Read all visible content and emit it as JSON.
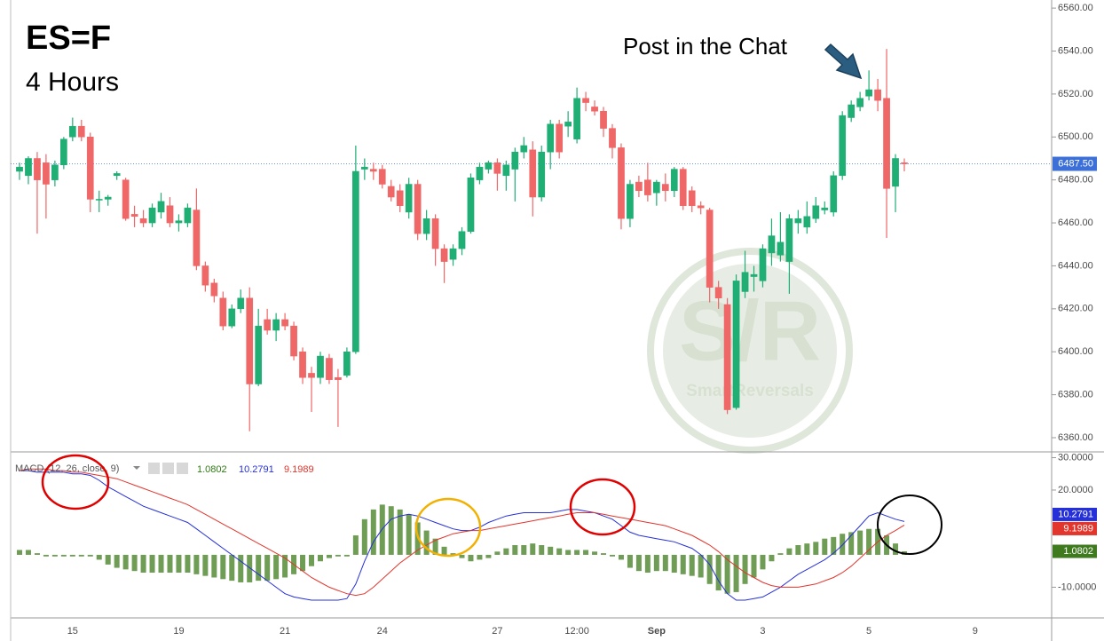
{
  "chart_data": {
    "type": "candlestick",
    "title": "ES=F",
    "subtitle": "4 Hours",
    "annotation": "Post in the Chat",
    "watermark": {
      "logo": "S/R",
      "text": "SmartReversals"
    },
    "categories": [
      null,
      null,
      null,
      null,
      null,
      null,
      "15",
      null,
      null,
      null,
      null,
      null,
      null,
      null,
      null,
      null,
      null,
      null,
      "19",
      null,
      null,
      null,
      null,
      null,
      null,
      null,
      null,
      null,
      null,
      null,
      "21",
      null,
      null,
      null,
      null,
      null,
      null,
      null,
      null,
      null,
      null,
      "24",
      null,
      null,
      null,
      null,
      null,
      null,
      null,
      null,
      null,
      null,
      null,
      null,
      "27",
      null,
      null,
      null,
      null,
      null,
      null,
      null,
      null,
      "12:00",
      null,
      null,
      null,
      null,
      null,
      null,
      null,
      null,
      "Sep",
      null,
      null,
      null,
      null,
      null,
      null,
      null,
      null,
      null,
      null,
      null,
      "3",
      null,
      null,
      null,
      null,
      null,
      null,
      null,
      null,
      null,
      null,
      null,
      "5",
      null,
      null,
      null,
      null,
      null,
      null,
      null,
      null,
      null,
      null,
      null,
      "9",
      null,
      null,
      null,
      null,
      null,
      null,
      null,
      null
    ],
    "open": [
      6484,
      6482,
      6490,
      6488,
      6480,
      6487,
      6500,
      6505,
      6500,
      6471,
      6471,
      6482,
      6480,
      6464,
      6462,
      6460,
      6465,
      6468,
      6460,
      6460,
      6466,
      6440,
      6432,
      6425,
      6412,
      6420,
      6425,
      6385,
      6415,
      6410,
      6415,
      6412,
      6400,
      6390,
      6388,
      6397,
      6388,
      6389,
      6400,
      6485,
      6485,
      6485,
      6477,
      6475,
      6465,
      6478,
      6455,
      6462,
      6448,
      6443,
      6448,
      6456,
      6480,
      6485,
      6488,
      6482,
      6485,
      6493,
      6494,
      6472,
      6493,
      6506,
      6505,
      6499,
      6518,
      6514,
      6512,
      6504,
      6495,
      6462,
      6479,
      6480,
      6474,
      6478,
      6475,
      6485,
      6475,
      6468,
      6466,
      6430,
      6422,
      6374,
      6428,
      6435,
      6433,
      6446,
      6445,
      6442,
      6460,
      6458,
      6462,
      6466,
      6465,
      6482,
      6509,
      6514,
      6519,
      6522,
      6518,
      6477,
      6488,
      null,
      null,
      null,
      null,
      null,
      null,
      null,
      null,
      null,
      null,
      null,
      null,
      null,
      null,
      null,
      null
    ],
    "high": [
      6488,
      6491,
      6493,
      6492,
      6489,
      6500,
      6509,
      6508,
      6502,
      6475,
      6473,
      6484,
      6481,
      6468,
      6466,
      6469,
      6474,
      6472,
      6464,
      6469,
      6476,
      6442,
      6434,
      6428,
      6422,
      6429,
      6430,
      6420,
      6420,
      6418,
      6418,
      6414,
      6402,
      6393,
      6400,
      6399,
      6392,
      6402,
      6496,
      6490,
      6488,
      6487,
      6480,
      6478,
      6481,
      6480,
      6466,
      6464,
      6450,
      6450,
      6458,
      6483,
      6488,
      6489,
      6490,
      6489,
      6495,
      6500,
      6498,
      6496,
      6508,
      6508,
      6512,
      6523,
      6521,
      6517,
      6514,
      6506,
      6497,
      6480,
      6482,
      6488,
      6480,
      6483,
      6486,
      6486,
      6477,
      6470,
      6467,
      6433,
      6425,
      6436,
      6447,
      6440,
      6450,
      6462,
      6465,
      6464,
      6466,
      6470,
      6472,
      6470,
      6484,
      6512,
      6517,
      6521,
      6531,
      6527,
      6541,
      6492,
      6490,
      null,
      null,
      null,
      null,
      null,
      null,
      null,
      null,
      null,
      null,
      null,
      null,
      null,
      null,
      null,
      null
    ],
    "low": [
      6480,
      6478,
      6455,
      6462,
      6477,
      6485,
      6498,
      6498,
      6465,
      6465,
      6468,
      6480,
      6461,
      6458,
      6458,
      6458,
      6462,
      6458,
      6456,
      6458,
      6438,
      6428,
      6423,
      6410,
      6411,
      6418,
      6363,
      6384,
      6408,
      6405,
      6410,
      6396,
      6385,
      6372,
      6385,
      6385,
      6365,
      6388,
      6399,
      6480,
      6480,
      6476,
      6470,
      6465,
      6462,
      6452,
      6452,
      6440,
      6432,
      6440,
      6445,
      6455,
      6478,
      6483,
      6475,
      6475,
      6470,
      6490,
      6463,
      6470,
      6485,
      6490,
      6500,
      6497,
      6512,
      6510,
      6500,
      6490,
      6457,
      6458,
      6472,
      6470,
      6468,
      6470,
      6472,
      6466,
      6465,
      6464,
      6423,
      6420,
      6371,
      6373,
      6425,
      6428,
      6430,
      6440,
      6442,
      6427,
      6455,
      6455,
      6460,
      6464,
      6463,
      6480,
      6507,
      6512,
      6517,
      6512,
      6453,
      6465,
      6484,
      null,
      null,
      null,
      null,
      null,
      null,
      null,
      null,
      null,
      null,
      null,
      null,
      null,
      null,
      null,
      null
    ],
    "close": [
      6486,
      6490,
      6480,
      6478,
      6487,
      6499,
      6505,
      6500,
      6471,
      6471,
      6472,
      6483,
      6462,
      6463,
      6460,
      6467,
      6470,
      6460,
      6461,
      6467,
      6440,
      6431,
      6426,
      6412,
      6420,
      6425,
      6385,
      6412,
      6410,
      6415,
      6412,
      6398,
      6388,
      6388,
      6398,
      6387,
      6387,
      6400,
      6484,
      6486,
      6484,
      6478,
      6472,
      6468,
      6478,
      6455,
      6462,
      6448,
      6442,
      6448,
      6456,
      6481,
      6486,
      6488,
      6483,
      6487,
      6493,
      6496,
      6472,
      6493,
      6506,
      6493,
      6507,
      6518,
      6516,
      6512,
      6504,
      6495,
      6462,
      6478,
      6475,
      6473,
      6479,
      6475,
      6485,
      6468,
      6468,
      6467,
      6430,
      6425,
      6373,
      6433,
      6437,
      6436,
      6448,
      6454,
      6451,
      6462,
      6462,
      6463,
      6468,
      6467,
      6482,
      6510,
      6515,
      6518,
      6522,
      6517,
      6476,
      6490,
      6487.5,
      null,
      null,
      null,
      null,
      null,
      null,
      null,
      null,
      null,
      null,
      null,
      null,
      null,
      null,
      null,
      null
    ],
    "up_color": "#1fae74",
    "down_color": "#ef6767",
    "last_price": {
      "value": 6487.5,
      "label": "6487.50",
      "color": "#3c70d8"
    },
    "ylim": [
      6353.8,
      6561.7
    ],
    "yticks": [
      {
        "value": 6360,
        "label": "6360.00"
      },
      {
        "value": 6380,
        "label": "6380.00"
      },
      {
        "value": 6400,
        "label": "6400.00"
      },
      {
        "value": 6420,
        "label": "6420.00"
      },
      {
        "value": 6440,
        "label": "6440.00"
      },
      {
        "value": 6460,
        "label": "6460.00"
      },
      {
        "value": 6480,
        "label": "6480.00"
      },
      {
        "value": 6500,
        "label": "6500.00"
      },
      {
        "value": 6520,
        "label": "6520.00"
      },
      {
        "value": 6540,
        "label": "6540.00"
      },
      {
        "value": 6560,
        "label": "6560.00"
      }
    ],
    "grid": false,
    "macd": {
      "title": "MACD (12, 26, close, 9)",
      "ylim": [
        -19.2,
        31.5
      ],
      "yticks": [
        {
          "value": -10,
          "label": "-10.0000"
        },
        {
          "value": 20,
          "label": "20.0000"
        },
        {
          "value": 30,
          "label": "30.0000"
        }
      ],
      "histogram": {
        "color": "#6f9d55",
        "values": [
          1.5,
          1.5,
          0.5,
          -0.5,
          -0.5,
          -0.5,
          -0.5,
          -0.5,
          -0.5,
          -1.5,
          -3,
          -4,
          -4.5,
          -5,
          -5.5,
          -5.5,
          -5.5,
          -5.5,
          -5.5,
          -5.5,
          -6,
          -6.5,
          -7,
          -7.5,
          -8,
          -8.5,
          -8.5,
          -8,
          -8,
          -7.5,
          -7,
          -6,
          -5,
          -3.5,
          -2,
          -1,
          -0.5,
          -0.5,
          6,
          11,
          14,
          15.5,
          15,
          14,
          12.5,
          10,
          7.5,
          5,
          2.5,
          0.5,
          -1,
          -2,
          -1.5,
          -1,
          1,
          2,
          3,
          3,
          3.5,
          3,
          2.5,
          2,
          1.5,
          1.5,
          1.5,
          1,
          0.5,
          -0.5,
          -1.5,
          -4,
          -5,
          -5.5,
          -5,
          -5,
          -5.5,
          -6,
          -6.5,
          -7,
          -9,
          -11,
          -12,
          -11.5,
          -9,
          -7,
          -4.5,
          -2,
          0.5,
          2,
          3,
          3.5,
          4,
          5,
          5.5,
          6.5,
          7,
          7.5,
          8,
          8,
          6,
          3.5,
          1.0802,
          null,
          null,
          null,
          null,
          null,
          null,
          null,
          null,
          null,
          null,
          null,
          null,
          null,
          null,
          null,
          null
        ]
      },
      "series": [
        {
          "color": "#2630d8",
          "values": [
            26,
            26,
            25.5,
            25.5,
            25.5,
            25.5,
            25,
            25,
            24.5,
            23,
            21,
            19.5,
            18,
            16.5,
            15,
            14,
            13,
            12,
            11,
            10,
            8,
            6,
            4,
            2,
            0,
            -2,
            -4,
            -6,
            -8,
            -10,
            -12,
            -13,
            -13.5,
            -14,
            -14,
            -14,
            -14,
            -13.5,
            -9,
            -2,
            4,
            8,
            11,
            12,
            12.5,
            12,
            11,
            10,
            9,
            8,
            7.5,
            7.5,
            8.5,
            10,
            11,
            12,
            12.5,
            13,
            13,
            13,
            13,
            13.5,
            14,
            14,
            13.5,
            13,
            12,
            11,
            9,
            7,
            6,
            5.5,
            5,
            4.5,
            4,
            3,
            2,
            0,
            -3,
            -8,
            -12,
            -14,
            -14,
            -13.5,
            -13,
            -11.5,
            -10,
            -8,
            -6,
            -4.5,
            -3,
            -1.5,
            0.5,
            3,
            6,
            9,
            12,
            13,
            12,
            11,
            10.2791,
            null,
            null,
            null,
            null,
            null,
            null,
            null,
            null,
            null,
            null,
            null,
            null,
            null,
            null,
            null,
            null
          ]
        },
        {
          "color": "#e2352c",
          "values": [
            26,
            26.5,
            26.5,
            26.5,
            26,
            26,
            25.5,
            25.5,
            25,
            24.5,
            24,
            23.5,
            22.5,
            21.5,
            20.5,
            19.5,
            18.5,
            17.5,
            16.5,
            15.5,
            14,
            12.5,
            11,
            9.5,
            8,
            6.5,
            5,
            3.5,
            2,
            0.5,
            -1,
            -3,
            -5,
            -7,
            -8.5,
            -10,
            -11,
            -12,
            -12.5,
            -12,
            -10,
            -7.5,
            -5,
            -2.5,
            -0.5,
            1.5,
            3,
            4.5,
            5.5,
            6.5,
            7,
            7.5,
            7.5,
            8,
            8.5,
            9,
            9.5,
            10,
            10.5,
            11,
            11.5,
            12,
            12.5,
            13,
            13,
            13,
            12.5,
            12,
            11.5,
            11,
            10.5,
            10,
            9.5,
            9,
            8,
            7,
            6,
            4.5,
            3,
            1,
            -1.5,
            -3.5,
            -5.5,
            -7,
            -8.5,
            -9.5,
            -10,
            -10,
            -10,
            -9.5,
            -9,
            -8,
            -7,
            -5.5,
            -3.5,
            -1,
            1.5,
            4,
            6,
            7.5,
            9.1989,
            null,
            null,
            null,
            null,
            null,
            null,
            null,
            null,
            null,
            null,
            null,
            null,
            null,
            null,
            null,
            null
          ]
        }
      ]
    }
  }
}
